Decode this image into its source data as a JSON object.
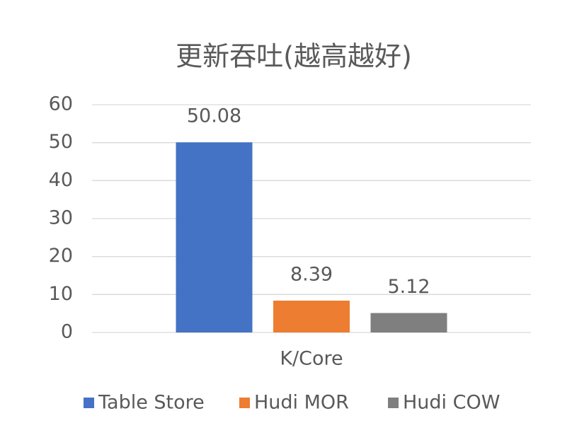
{
  "chart_data": {
    "type": "bar",
    "title": "更新吞吐(越高越好)",
    "categories": [
      "K/Core"
    ],
    "series": [
      {
        "name": "Table Store",
        "color": "#4472c4",
        "values": [
          50.08
        ]
      },
      {
        "name": "Hudi MOR",
        "color": "#ed7d31",
        "values": [
          8.39
        ]
      },
      {
        "name": "Hudi COW",
        "color": "#7f7f7f",
        "values": [
          5.12
        ]
      }
    ],
    "ylim": [
      0,
      60
    ],
    "yticks": [
      0,
      10,
      20,
      30,
      40,
      50,
      60
    ],
    "grid": true,
    "legend": "bottom"
  }
}
